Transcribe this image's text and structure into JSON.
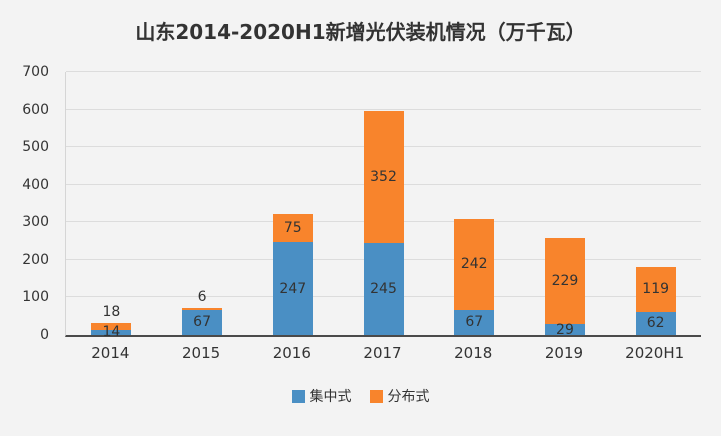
{
  "title": "山东2014-2020H1新增光伏装机情况（万千瓦）",
  "colors": {
    "centralized_blue": "#4a8fc4",
    "distributed_orange": "#f8842c",
    "background": "#f3f3f3",
    "grid": "#dcdcdc",
    "axis": "#4a4a4a",
    "text": "#333333"
  },
  "chart_data": {
    "type": "bar",
    "stacked": true,
    "title": "山东2014-2020H1新增光伏装机情况（万千瓦）",
    "categories": [
      "2014",
      "2015",
      "2016",
      "2017",
      "2018",
      "2019",
      "2020H1"
    ],
    "series": [
      {
        "name": "集中式",
        "color": "#4a8fc4",
        "values": [
          14,
          67,
          247,
          245,
          67,
          29,
          62
        ]
      },
      {
        "name": "分布式",
        "color": "#f8842c",
        "values": [
          18,
          6,
          75,
          352,
          242,
          229,
          119
        ]
      }
    ],
    "xlabel": "",
    "ylabel": "",
    "ylim": [
      0,
      700
    ],
    "yticks": [
      0,
      100,
      200,
      300,
      400,
      500,
      600,
      700
    ],
    "grid": true,
    "legend_position": "bottom",
    "data_labels": true
  }
}
